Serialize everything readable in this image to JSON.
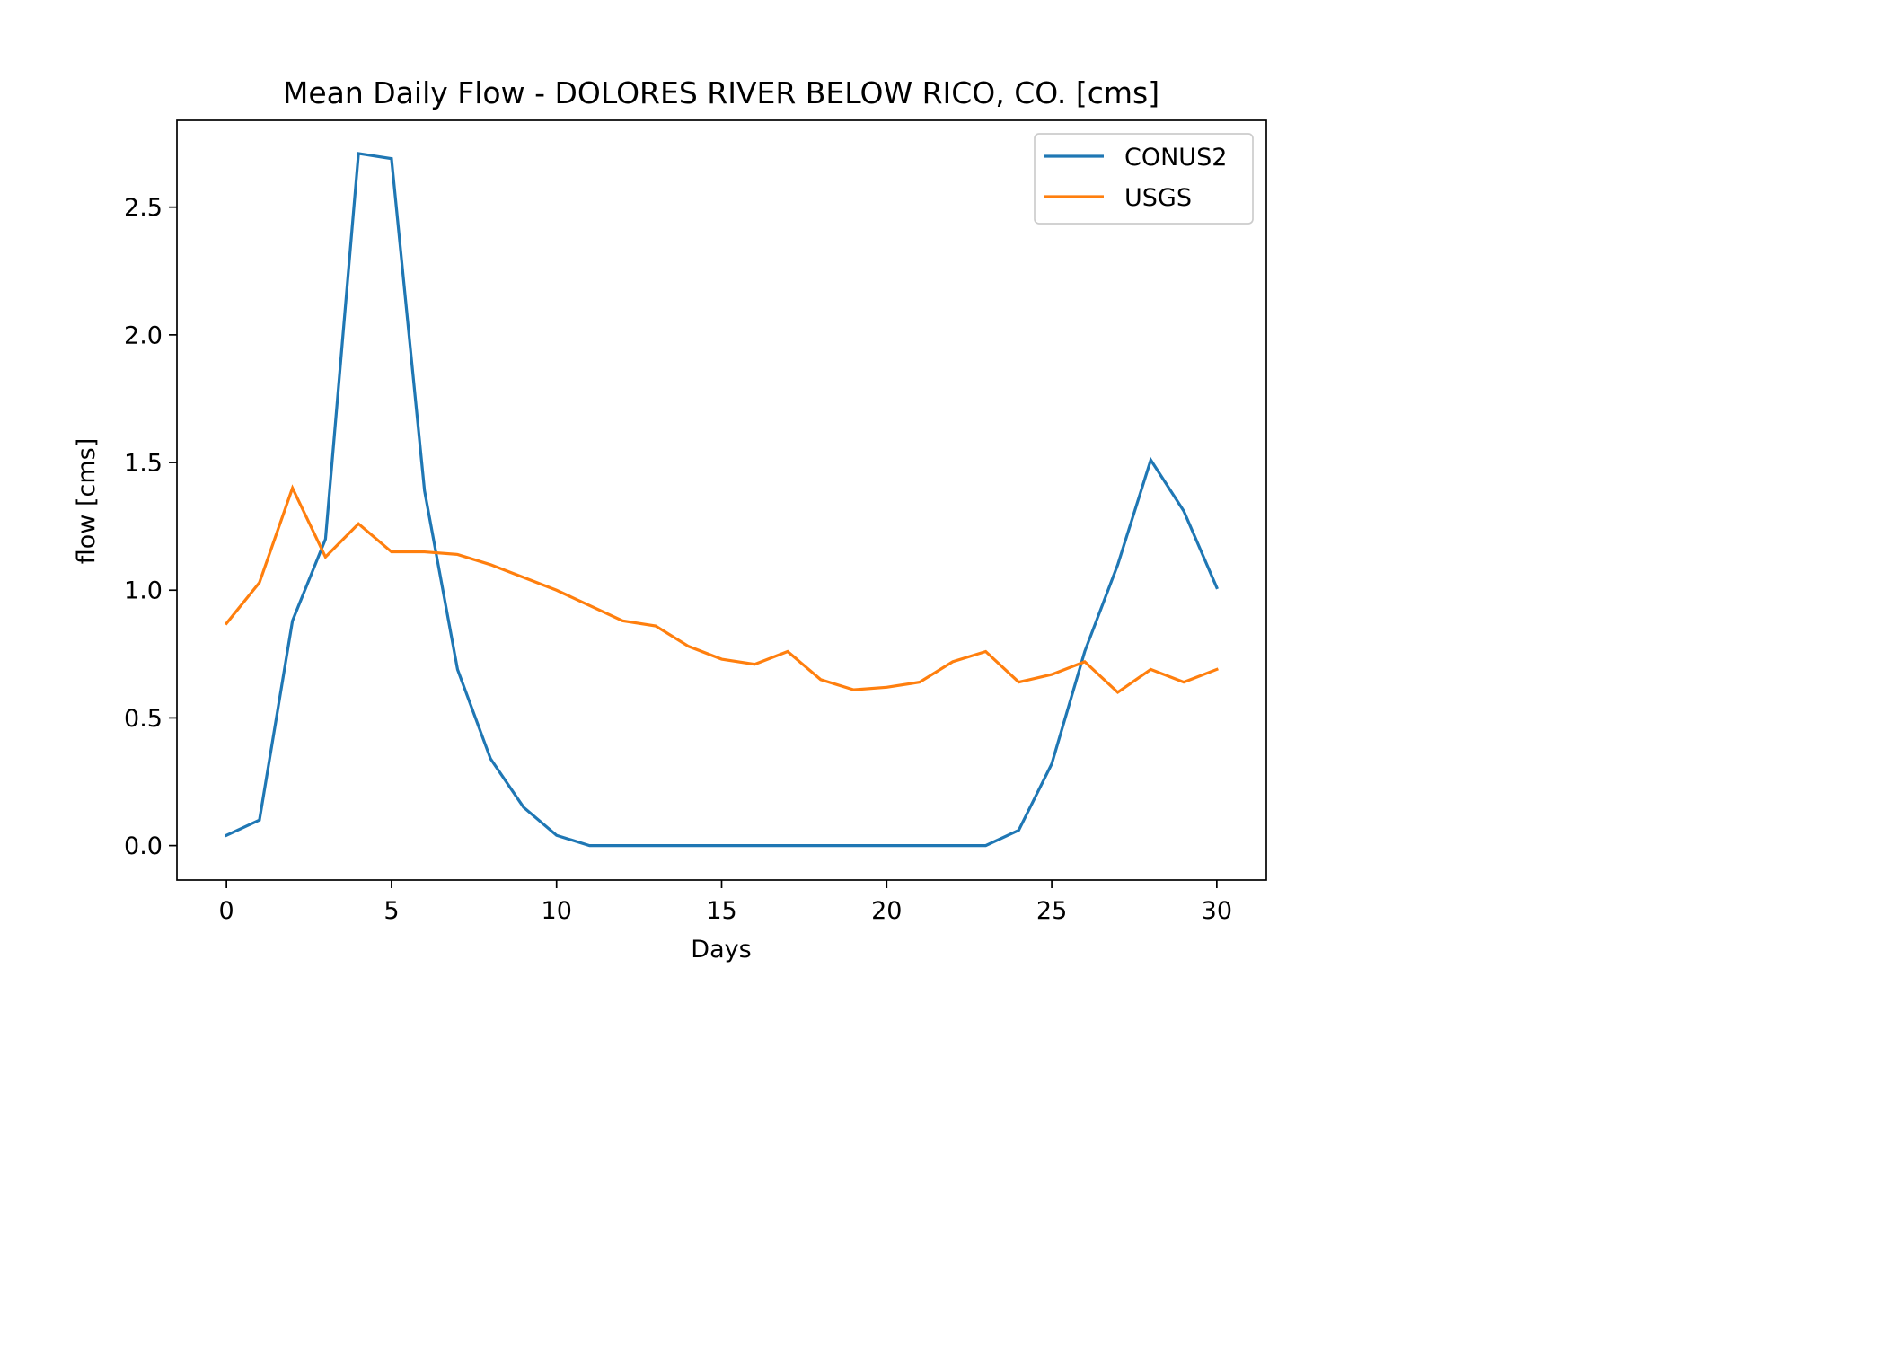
{
  "chart_data": {
    "type": "line",
    "title": "Mean Daily Flow - DOLORES RIVER BELOW RICO, CO. [cms]",
    "xlabel": "Days",
    "ylabel": "flow [cms]",
    "xlim": [
      -1.5,
      31.5
    ],
    "ylim": [
      -0.135,
      2.84
    ],
    "xticks": [
      0,
      5,
      10,
      15,
      20,
      25,
      30
    ],
    "yticks": [
      0.0,
      0.5,
      1.0,
      1.5,
      2.0,
      2.5
    ],
    "ytick_labels": [
      "0.0",
      "0.5",
      "1.0",
      "1.5",
      "2.0",
      "2.5"
    ],
    "grid": false,
    "legend_position": "upper right",
    "x": [
      0,
      1,
      2,
      3,
      4,
      5,
      6,
      7,
      8,
      9,
      10,
      11,
      12,
      13,
      14,
      15,
      16,
      17,
      18,
      19,
      20,
      21,
      22,
      23,
      24,
      25,
      26,
      27,
      28,
      29,
      30
    ],
    "series": [
      {
        "name": "CONUS2",
        "color": "#1f77b4",
        "values": [
          0.04,
          0.1,
          0.88,
          1.2,
          2.71,
          2.69,
          1.39,
          0.69,
          0.34,
          0.15,
          0.04,
          0.0,
          0.0,
          0.0,
          0.0,
          0.0,
          0.0,
          0.0,
          0.0,
          0.0,
          0.0,
          0.0,
          0.0,
          0.0,
          0.06,
          0.32,
          0.76,
          1.1,
          1.51,
          1.31,
          1.01
        ]
      },
      {
        "name": "USGS",
        "color": "#ff7f0e",
        "values": [
          0.87,
          1.03,
          1.4,
          1.13,
          1.26,
          1.15,
          1.15,
          1.14,
          1.1,
          1.05,
          1.0,
          0.94,
          0.88,
          0.86,
          0.78,
          0.73,
          0.71,
          0.76,
          0.65,
          0.61,
          0.62,
          0.64,
          0.72,
          0.76,
          0.64,
          0.67,
          0.72,
          0.6,
          0.69,
          0.64,
          0.69
        ]
      }
    ]
  }
}
